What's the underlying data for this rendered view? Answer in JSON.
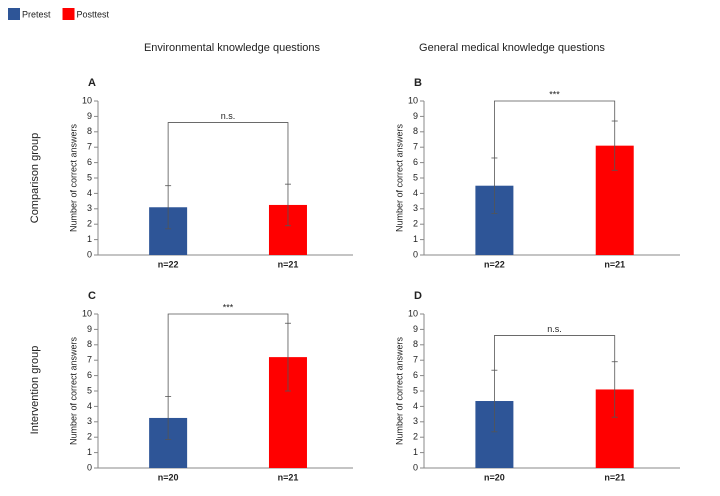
{
  "legend": [
    {
      "name": "Pretest",
      "color": "#2e5597"
    },
    {
      "name": "Posttest",
      "color": "#ff0000"
    }
  ],
  "column_titles": [
    "Environmental knowledge questions",
    "General medical knowledge questions"
  ],
  "row_titles": [
    "Comparison group",
    "Intervention group"
  ],
  "chart_data": [
    {
      "type": "bar",
      "label": "A",
      "y_label": "Number of correct answers",
      "categories": [
        "n=22",
        "n=21"
      ],
      "values": [
        3.1,
        3.25
      ],
      "errors": [
        1.4,
        1.35
      ],
      "colors": [
        "#2e5597",
        "#ff0000"
      ],
      "ylim": [
        0,
        10
      ],
      "yticks": [
        0,
        1,
        2,
        3,
        4,
        5,
        6,
        7,
        8,
        9,
        10
      ],
      "annotation": "n.s."
    },
    {
      "type": "bar",
      "label": "B",
      "y_label": "Number of correct answers",
      "categories": [
        "n=22",
        "n=21"
      ],
      "values": [
        4.5,
        7.1
      ],
      "errors": [
        1.8,
        1.6
      ],
      "colors": [
        "#2e5597",
        "#ff0000"
      ],
      "ylim": [
        0,
        10
      ],
      "yticks": [
        0,
        1,
        2,
        3,
        4,
        5,
        6,
        7,
        8,
        9,
        10
      ],
      "annotation": "***"
    },
    {
      "type": "bar",
      "label": "C",
      "y_label": "Number of correct answers",
      "categories": [
        "n=20",
        "n=21"
      ],
      "values": [
        3.25,
        7.2
      ],
      "errors": [
        1.4,
        2.2
      ],
      "colors": [
        "#2e5597",
        "#ff0000"
      ],
      "ylim": [
        0,
        10
      ],
      "yticks": [
        0,
        1,
        2,
        3,
        4,
        5,
        6,
        7,
        8,
        9,
        10
      ],
      "annotation": "***"
    },
    {
      "type": "bar",
      "label": "D",
      "y_label": "Number of correct answers",
      "categories": [
        "n=20",
        "n=21"
      ],
      "values": [
        4.35,
        5.1
      ],
      "errors": [
        2.0,
        1.8
      ],
      "colors": [
        "#2e5597",
        "#ff0000"
      ],
      "ylim": [
        0,
        10
      ],
      "yticks": [
        0,
        1,
        2,
        3,
        4,
        5,
        6,
        7,
        8,
        9,
        10
      ],
      "annotation": "n.s."
    }
  ]
}
